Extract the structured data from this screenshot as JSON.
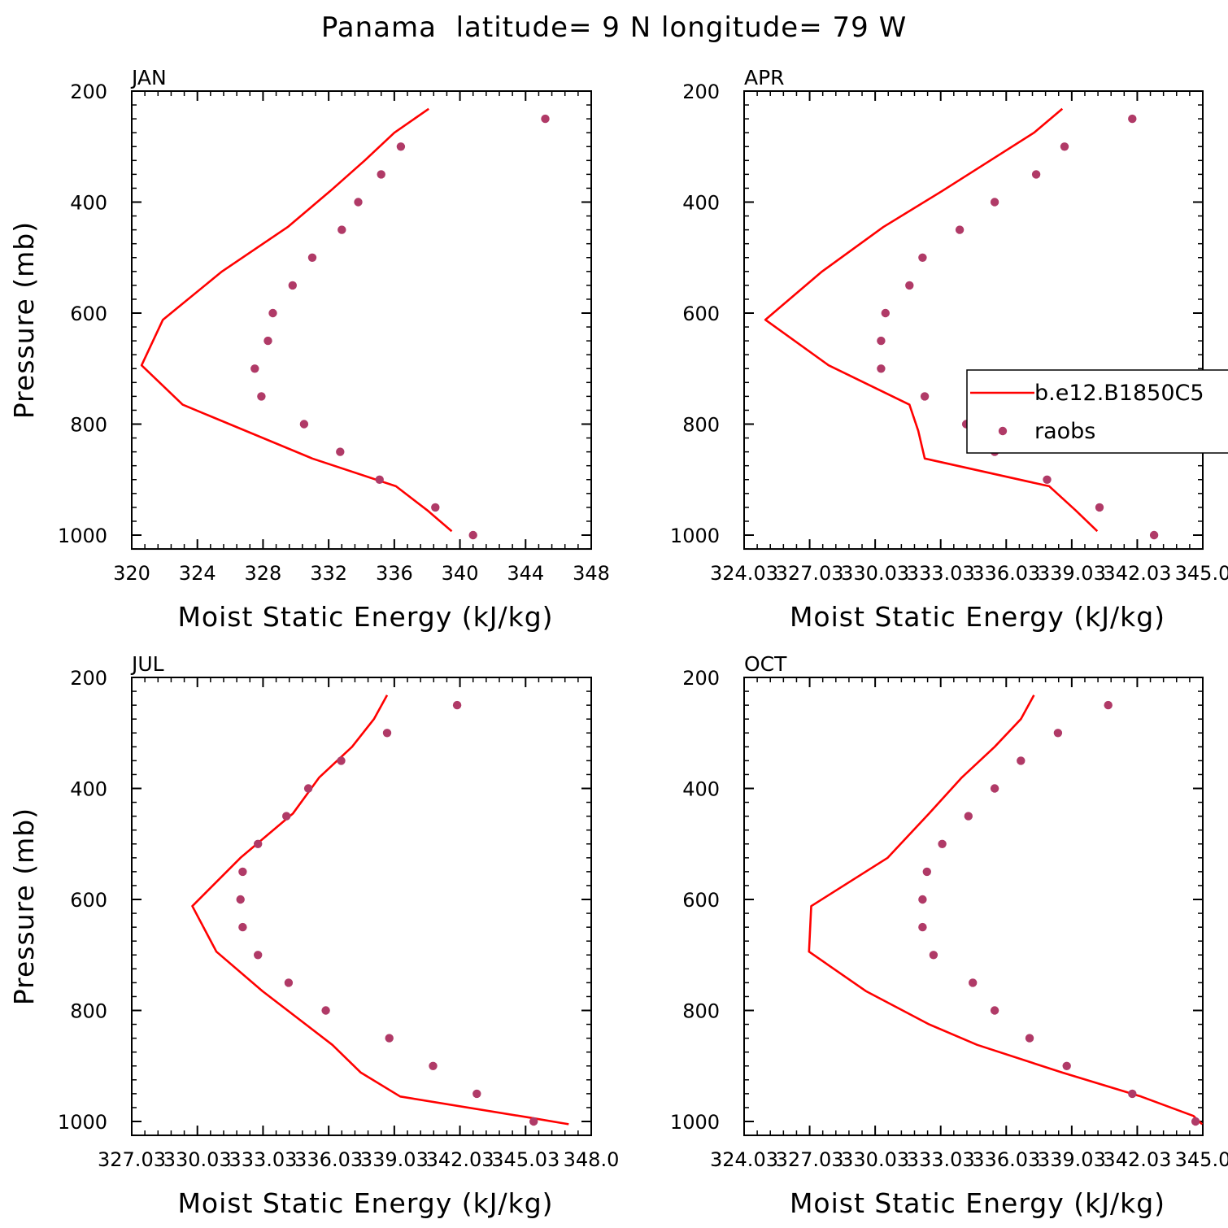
{
  "title": "Panama  latitude= 9 N longitude= 79 W",
  "legend": {
    "model_label": "b.e12.B1850C5",
    "obs_label": "raobs"
  },
  "colors": {
    "model": "#ff0000",
    "obs": "#b03a67"
  },
  "chart_data": [
    {
      "type": "line",
      "panel": "JAN",
      "xlabel": "Moist Static Energy (kJ/kg)",
      "ylabel": "Pressure (mb)",
      "xlim": [
        320,
        348
      ],
      "ylim": [
        1025,
        200
      ],
      "xticks": [
        320,
        324,
        328,
        332,
        336,
        340,
        344,
        348
      ],
      "xtick_labels": [
        "320",
        "324",
        "328",
        "332",
        "336",
        "340",
        "344",
        "348"
      ],
      "yticks": [
        200,
        400,
        600,
        800,
        1000
      ],
      "ytick_labels": [
        "200",
        "400",
        "600",
        "800",
        "1000"
      ],
      "series": [
        {
          "name": "b.e12.B1850C5",
          "kind": "line",
          "p": [
            232,
            275,
            325,
            380,
            445,
            525,
            612,
            694,
            765,
            862,
            912,
            955,
            993
          ],
          "mse": [
            338.1,
            336.0,
            334.2,
            332.1,
            329.5,
            325.5,
            321.9,
            320.6,
            323.1,
            331.0,
            336.1,
            338.0,
            339.5
          ]
        },
        {
          "name": "raobs",
          "kind": "scatter",
          "p": [
            250,
            300,
            350,
            400,
            450,
            500,
            550,
            600,
            650,
            700,
            750,
            800,
            850,
            900,
            950,
            1000
          ],
          "mse": [
            345.2,
            336.4,
            335.2,
            333.8,
            332.8,
            331.0,
            329.8,
            328.6,
            328.3,
            327.5,
            327.9,
            330.5,
            332.7,
            335.1,
            338.5,
            340.8
          ]
        }
      ]
    },
    {
      "type": "line",
      "panel": "APR",
      "xlabel": "Moist Static Energy (kJ/kg)",
      "ylabel": "",
      "xlim": [
        324.03,
        345.03
      ],
      "ylim": [
        1025,
        200
      ],
      "xticks": [
        324.03,
        327.03,
        330.03,
        333.03,
        336.03,
        339.03,
        342.03,
        345.03
      ],
      "xtick_labels": [
        "324.03",
        "327.03",
        "330.03",
        "333.03",
        "336.03",
        "339.03",
        "342.03",
        "345.0"
      ],
      "yticks": [
        200,
        400,
        600,
        800,
        1000
      ],
      "ytick_labels": [
        "200",
        "400",
        "600",
        "800",
        "1000"
      ],
      "series": [
        {
          "name": "b.e12.B1850C5",
          "kind": "line",
          "p": [
            232,
            275,
            325,
            380,
            445,
            525,
            612,
            694,
            765,
            812,
            862,
            912,
            955,
            993
          ],
          "mse": [
            338.6,
            337.3,
            335.3,
            333.1,
            330.4,
            327.6,
            325.0,
            327.9,
            331.6,
            332.0,
            332.3,
            338.0,
            339.2,
            340.2
          ]
        },
        {
          "name": "raobs",
          "kind": "scatter",
          "p": [
            250,
            300,
            350,
            400,
            450,
            500,
            550,
            600,
            650,
            700,
            750,
            800,
            850,
            900,
            950,
            1000
          ],
          "mse": [
            341.8,
            338.7,
            337.4,
            335.5,
            333.9,
            332.2,
            331.6,
            330.5,
            330.3,
            330.3,
            332.3,
            334.2,
            335.5,
            337.9,
            340.3,
            342.8
          ]
        }
      ]
    },
    {
      "type": "line",
      "panel": "JUL",
      "xlabel": "Moist Static Energy (kJ/kg)",
      "ylabel": "Pressure (mb)",
      "xlim": [
        327.03,
        348.03
      ],
      "ylim": [
        1025,
        200
      ],
      "xticks": [
        327.03,
        330.03,
        333.03,
        336.03,
        339.03,
        342.03,
        345.03,
        348.03
      ],
      "xtick_labels": [
        "327.03",
        "330.03",
        "333.03",
        "336.03",
        "339.03",
        "342.03",
        "345.03",
        "348.0"
      ],
      "yticks": [
        200,
        400,
        600,
        800,
        1000
      ],
      "ytick_labels": [
        "200",
        "400",
        "600",
        "800",
        "1000"
      ],
      "series": [
        {
          "name": "b.e12.B1850C5",
          "kind": "line",
          "p": [
            232,
            275,
            325,
            380,
            445,
            525,
            612,
            694,
            765,
            862,
            912,
            955,
            993,
            1005
          ],
          "mse": [
            338.7,
            338.1,
            337.1,
            335.6,
            334.4,
            332.0,
            329.8,
            330.9,
            333.0,
            336.2,
            337.5,
            339.3,
            345.2,
            347.0
          ]
        },
        {
          "name": "raobs",
          "kind": "scatter",
          "p": [
            250,
            300,
            350,
            400,
            450,
            500,
            550,
            600,
            650,
            700,
            750,
            800,
            850,
            900,
            950,
            1000
          ],
          "mse": [
            341.9,
            338.7,
            336.6,
            335.1,
            334.1,
            332.8,
            332.1,
            332.0,
            332.1,
            332.8,
            334.2,
            335.9,
            338.8,
            340.8,
            342.8,
            345.4
          ]
        }
      ]
    },
    {
      "type": "line",
      "panel": "OCT",
      "xlabel": "Moist Static Energy (kJ/kg)",
      "ylabel": "",
      "xlim": [
        324.03,
        345.03
      ],
      "ylim": [
        1025,
        200
      ],
      "xticks": [
        324.03,
        327.03,
        330.03,
        333.03,
        336.03,
        339.03,
        342.03,
        345.03
      ],
      "xtick_labels": [
        "324.03",
        "327.03",
        "330.03",
        "333.03",
        "336.03",
        "339.03",
        "342.03",
        "345.0"
      ],
      "yticks": [
        200,
        400,
        600,
        800,
        1000
      ],
      "ytick_labels": [
        "200",
        "400",
        "600",
        "800",
        "1000"
      ],
      "series": [
        {
          "name": "b.e12.B1850C5",
          "kind": "line",
          "p": [
            232,
            275,
            325,
            380,
            445,
            525,
            612,
            694,
            765,
            825,
            862,
            912,
            955,
            990,
            1005
          ],
          "mse": [
            337.3,
            336.7,
            335.5,
            334.0,
            332.5,
            330.6,
            327.1,
            327.0,
            329.6,
            332.5,
            334.7,
            338.6,
            342.2,
            344.6,
            345.0
          ]
        },
        {
          "name": "raobs",
          "kind": "scatter",
          "p": [
            250,
            300,
            350,
            400,
            450,
            500,
            550,
            600,
            650,
            700,
            750,
            800,
            850,
            900,
            950,
            1000
          ],
          "mse": [
            340.7,
            338.4,
            336.7,
            335.5,
            334.3,
            333.1,
            332.4,
            332.2,
            332.2,
            332.7,
            334.5,
            335.5,
            337.1,
            338.8,
            341.8,
            344.7
          ]
        }
      ]
    }
  ]
}
